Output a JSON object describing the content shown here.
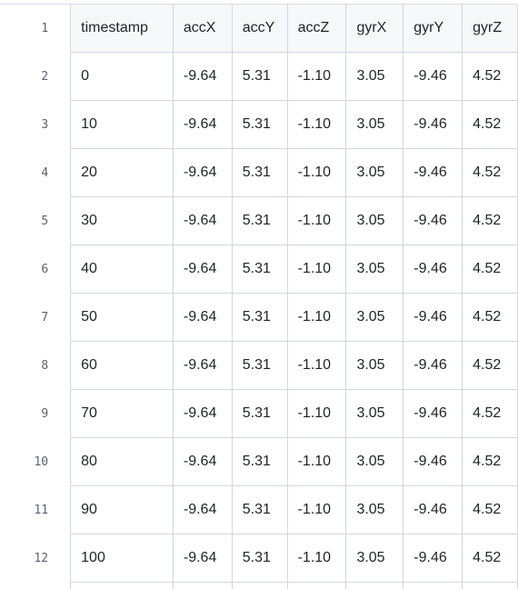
{
  "csv_table": {
    "columns": [
      "timestamp",
      "accX",
      "accY",
      "accZ",
      "gyrX",
      "gyrY",
      "gyrZ"
    ],
    "header_line_number": "1",
    "rows": [
      {
        "line": "2",
        "cells": [
          "0",
          "-9.64",
          "5.31",
          "-1.10",
          "3.05",
          "-9.46",
          "4.52"
        ]
      },
      {
        "line": "3",
        "cells": [
          "10",
          "-9.64",
          "5.31",
          "-1.10",
          "3.05",
          "-9.46",
          "4.52"
        ]
      },
      {
        "line": "4",
        "cells": [
          "20",
          "-9.64",
          "5.31",
          "-1.10",
          "3.05",
          "-9.46",
          "4.52"
        ]
      },
      {
        "line": "5",
        "cells": [
          "30",
          "-9.64",
          "5.31",
          "-1.10",
          "3.05",
          "-9.46",
          "4.52"
        ]
      },
      {
        "line": "6",
        "cells": [
          "40",
          "-9.64",
          "5.31",
          "-1.10",
          "3.05",
          "-9.46",
          "4.52"
        ]
      },
      {
        "line": "7",
        "cells": [
          "50",
          "-9.64",
          "5.31",
          "-1.10",
          "3.05",
          "-9.46",
          "4.52"
        ]
      },
      {
        "line": "8",
        "cells": [
          "60",
          "-9.64",
          "5.31",
          "-1.10",
          "3.05",
          "-9.46",
          "4.52"
        ]
      },
      {
        "line": "9",
        "cells": [
          "70",
          "-9.64",
          "5.31",
          "-1.10",
          "3.05",
          "-9.46",
          "4.52"
        ]
      },
      {
        "line": "10",
        "cells": [
          "80",
          "-9.64",
          "5.31",
          "-1.10",
          "3.05",
          "-9.46",
          "4.52"
        ]
      },
      {
        "line": "11",
        "cells": [
          "90",
          "-9.64",
          "5.31",
          "-1.10",
          "3.05",
          "-9.46",
          "4.52"
        ]
      },
      {
        "line": "12",
        "cells": [
          "100",
          "-9.64",
          "5.31",
          "-1.10",
          "3.05",
          "-9.46",
          "4.52"
        ]
      }
    ]
  },
  "colors": {
    "header_background": "#f6f8fa",
    "border": "#d0d7de",
    "text": "#1f2328",
    "line_number_text": "#59636e"
  }
}
